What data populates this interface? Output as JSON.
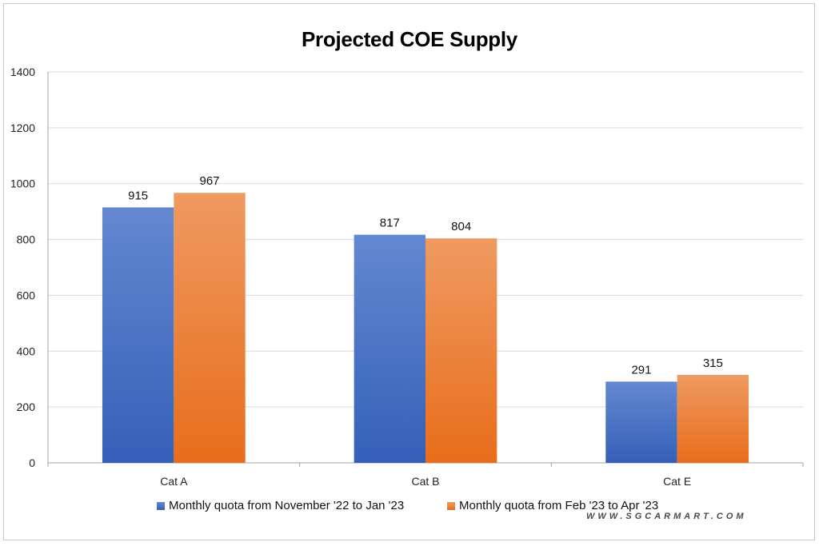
{
  "chart_data": {
    "type": "bar",
    "title": "Projected COE Supply",
    "categories": [
      "Cat A",
      "Cat B",
      "Cat E"
    ],
    "series": [
      {
        "name": "Monthly quota from November '22 to Jan '23",
        "values": [
          915,
          817,
          291
        ],
        "color_top": "#6488d0",
        "color_bottom": "#3560b8"
      },
      {
        "name": "Monthly quota from Feb '23 to Apr '23",
        "values": [
          967,
          804,
          315
        ],
        "color_top": "#ef9a62",
        "color_bottom": "#e86d1a"
      }
    ],
    "y_ticks": [
      0,
      200,
      400,
      600,
      800,
      1000,
      1200,
      1400
    ],
    "ylim": [
      0,
      1400
    ],
    "grid": true,
    "legend_position": "bottom",
    "xlabel": "",
    "ylabel": ""
  },
  "watermark": "WWW.SGCARMART.COM"
}
